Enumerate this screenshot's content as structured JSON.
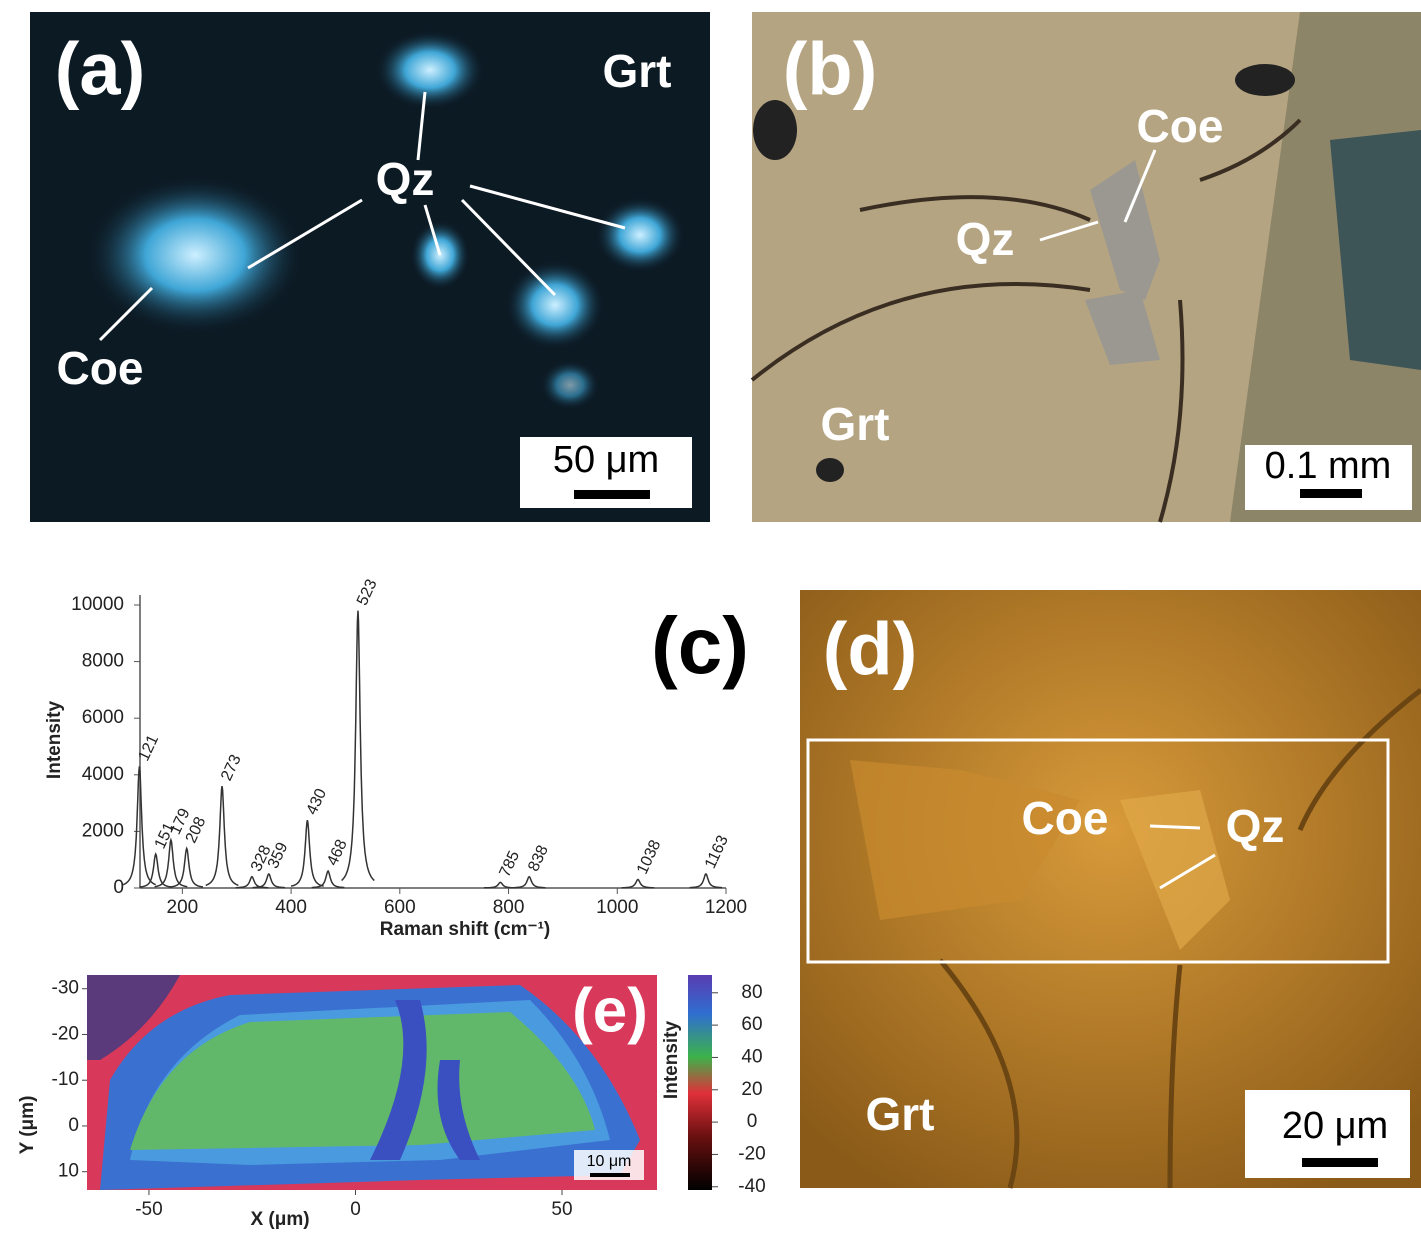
{
  "panels": [
    {
      "label": "(a)",
      "annotations": [
        "Grt",
        "Qz",
        "Coe"
      ],
      "scale_bar": "50 μm"
    },
    {
      "label": "(b)",
      "annotations": [
        "Coe",
        "Qz",
        "Grt"
      ],
      "scale_bar": "0.1 mm"
    },
    {
      "label": "(d)",
      "annotations": [
        "Coe",
        "Qz",
        "Grt"
      ],
      "scale_bar": "20 μm"
    }
  ],
  "chart_data": [
    {
      "type": "spectrum",
      "label": "(c)",
      "x_label": "Raman shift (cm⁻¹)",
      "y_label": "Intensity",
      "x": [
        121,
        151,
        179,
        208,
        273,
        328,
        359,
        430,
        468,
        523,
        785,
        838,
        1038,
        1163
      ],
      "values": [
        4300,
        1200,
        1700,
        1400,
        3600,
        400,
        500,
        2400,
        600,
        9800,
        200,
        400,
        300,
        500
      ],
      "color": "#333333",
      "xlim": [
        100,
        1200
      ],
      "xticks": [
        200,
        400,
        600,
        800,
        1000,
        1200
      ],
      "ylim": [
        0,
        10000
      ],
      "yticks": [
        0,
        2000,
        4000,
        6000,
        8000,
        10000
      ]
    },
    {
      "type": "map",
      "label": "(e)",
      "x_label": "X (μm)",
      "y_label": "Y (μm)",
      "xlim": [
        -65,
        73
      ],
      "xticks": [
        -50,
        0,
        50
      ],
      "ylim": [
        -33,
        14
      ],
      "yticks": [
        -30,
        -20,
        -10,
        0,
        10
      ],
      "colorbar_label": "Intensity",
      "clim": [
        -42,
        91
      ],
      "cticks": [
        80,
        60,
        40,
        20,
        0,
        -20,
        -40
      ],
      "scale_bar": "10 μm"
    }
  ]
}
